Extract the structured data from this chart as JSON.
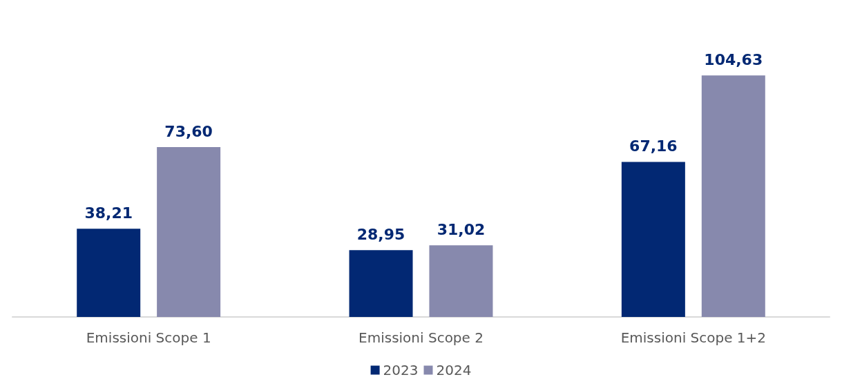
{
  "chart_data": {
    "type": "bar",
    "categories": [
      "Emissioni Scope 1",
      "Emissioni Scope 2",
      "Emissioni Scope 1+2"
    ],
    "series": [
      {
        "name": "2023",
        "color": "#022873",
        "values": [
          38.21,
          28.95,
          67.16
        ],
        "value_labels": [
          "38,21",
          "28,95",
          "67,16"
        ]
      },
      {
        "name": "2024",
        "color": "#8789ad",
        "values": [
          73.6,
          31.02,
          104.63
        ],
        "value_labels": [
          "73,60",
          "31,02",
          "104,63"
        ]
      }
    ],
    "legend": "bottom",
    "grid": false
  }
}
